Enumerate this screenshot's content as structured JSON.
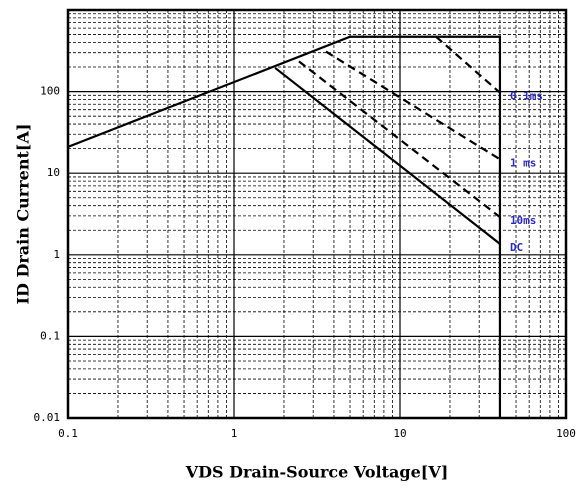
{
  "chart_data": {
    "type": "line",
    "xlabel": "VDS Drain-Source Voltage[V]",
    "ylabel": "ID Drain Current[A]",
    "xscale": "log",
    "yscale": "log",
    "grid": true,
    "xlim": [
      0.1,
      100
    ],
    "ylim": [
      0.01,
      1000
    ],
    "xticks": [
      0.1,
      1,
      10,
      100
    ],
    "yticks": [
      0.01,
      0.1,
      1,
      10,
      100
    ],
    "series": [
      {
        "color": "#000000",
        "linestyle": "solid",
        "x": [
          0.1,
          5,
          40,
          40
        ],
        "values": [
          21,
          470,
          470,
          0.01
        ]
      },
      {
        "name": "0.1ms",
        "color": "#000000",
        "linestyle": "dashed",
        "x": [
          16.5,
          40
        ],
        "values": [
          470,
          97
        ]
      },
      {
        "name": "1 ms",
        "color": "#000000",
        "linestyle": "dashed",
        "x": [
          3.58,
          40
        ],
        "values": [
          309,
          14.8
        ]
      },
      {
        "name": "10ms",
        "color": "#000000",
        "linestyle": "dashed",
        "x": [
          2.46,
          40
        ],
        "values": [
          235,
          2.9
        ]
      },
      {
        "name": "DC",
        "color": "#000000",
        "linestyle": "solid",
        "x": [
          1.77,
          40
        ],
        "values": [
          195,
          1.36
        ]
      }
    ]
  }
}
